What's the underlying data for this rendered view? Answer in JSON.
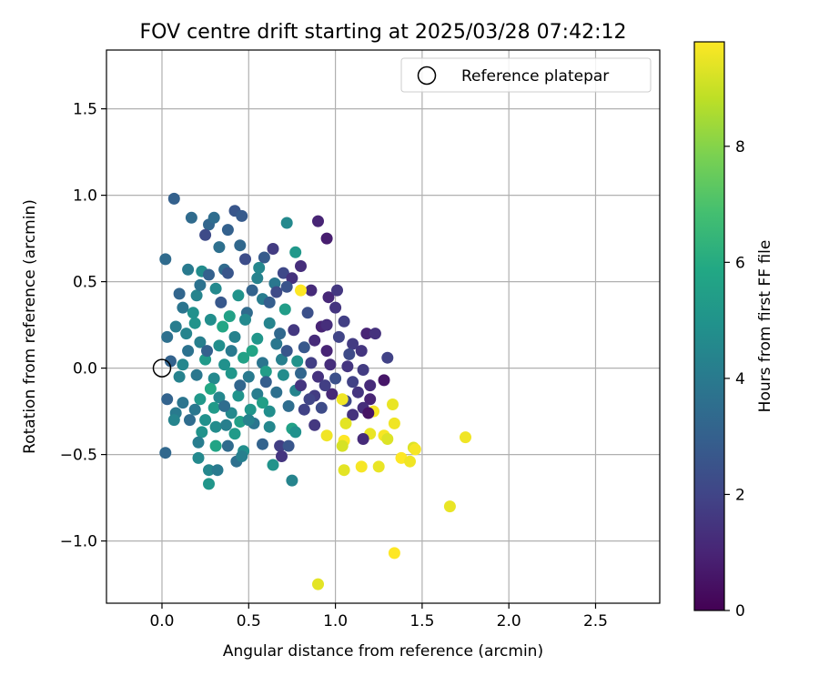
{
  "chart_data": {
    "type": "scatter",
    "title": "FOV centre drift starting at 2025/03/28 07:42:12",
    "xlabel": "Angular distance from reference (arcmin)",
    "ylabel": "Rotation from reference (arcmin)",
    "xlim": [
      -0.32,
      2.87
    ],
    "ylim": [
      -1.36,
      1.84
    ],
    "xticks": [
      0.0,
      0.5,
      1.0,
      1.5,
      2.0,
      2.5
    ],
    "xtick_labels": [
      "0.0",
      "0.5",
      "1.0",
      "1.5",
      "2.0",
      "2.5"
    ],
    "yticks": [
      -1.0,
      -0.5,
      0.0,
      0.5,
      1.0,
      1.5
    ],
    "ytick_labels": [
      "−1.0",
      "−0.5",
      "0.0",
      "0.5",
      "1.0",
      "1.5"
    ],
    "grid": true,
    "legend": {
      "position": "upper right",
      "entries": [
        "Reference platepar"
      ]
    },
    "reference_point": {
      "x": 0.0,
      "y": 0.0
    },
    "colorbar": {
      "label": "Hours from first FF file",
      "colormap": "viridis",
      "range": [
        0,
        9.8
      ],
      "ticks": [
        0,
        2,
        4,
        6,
        8
      ],
      "tick_labels": [
        "0",
        "2",
        "4",
        "6",
        "8"
      ]
    },
    "points": [
      {
        "x": 0.07,
        "y": 0.98,
        "t": 3.0
      },
      {
        "x": 0.17,
        "y": 0.87,
        "t": 3.4
      },
      {
        "x": 0.27,
        "y": 0.83,
        "t": 3.2
      },
      {
        "x": 0.3,
        "y": 0.87,
        "t": 3.5
      },
      {
        "x": 0.42,
        "y": 0.91,
        "t": 2.6
      },
      {
        "x": 0.46,
        "y": 0.88,
        "t": 2.8
      },
      {
        "x": 0.25,
        "y": 0.77,
        "t": 2.2
      },
      {
        "x": 0.38,
        "y": 0.8,
        "t": 3.0
      },
      {
        "x": 0.72,
        "y": 0.84,
        "t": 4.6
      },
      {
        "x": 0.9,
        "y": 0.85,
        "t": 1.0
      },
      {
        "x": 0.95,
        "y": 0.75,
        "t": 0.8
      },
      {
        "x": 0.02,
        "y": 0.63,
        "t": 3.4
      },
      {
        "x": 0.64,
        "y": 0.69,
        "t": 1.7
      },
      {
        "x": 0.77,
        "y": 0.67,
        "t": 5.2
      },
      {
        "x": 0.33,
        "y": 0.7,
        "t": 3.6
      },
      {
        "x": 0.45,
        "y": 0.71,
        "t": 3.3
      },
      {
        "x": 0.59,
        "y": 0.64,
        "t": 2.8
      },
      {
        "x": 0.48,
        "y": 0.63,
        "t": 2.3
      },
      {
        "x": 0.8,
        "y": 0.59,
        "t": 1.3
      },
      {
        "x": 0.15,
        "y": 0.57,
        "t": 4.0
      },
      {
        "x": 0.23,
        "y": 0.56,
        "t": 4.7
      },
      {
        "x": 0.55,
        "y": 0.52,
        "t": 4.3
      },
      {
        "x": 0.7,
        "y": 0.55,
        "t": 2.1
      },
      {
        "x": 0.36,
        "y": 0.57,
        "t": 3.4
      },
      {
        "x": 0.27,
        "y": 0.54,
        "t": 3.0
      },
      {
        "x": 0.65,
        "y": 0.49,
        "t": 3.9
      },
      {
        "x": 0.75,
        "y": 0.52,
        "t": 1.4
      },
      {
        "x": 0.72,
        "y": 0.47,
        "t": 2.5
      },
      {
        "x": 0.86,
        "y": 0.45,
        "t": 1.2
      },
      {
        "x": 0.8,
        "y": 0.45,
        "t": 9.8
      },
      {
        "x": 0.1,
        "y": 0.43,
        "t": 3.2
      },
      {
        "x": 0.12,
        "y": 0.35,
        "t": 3.8
      },
      {
        "x": 0.2,
        "y": 0.42,
        "t": 4.4
      },
      {
        "x": 0.31,
        "y": 0.46,
        "t": 4.6
      },
      {
        "x": 0.44,
        "y": 0.42,
        "t": 5.0
      },
      {
        "x": 0.58,
        "y": 0.4,
        "t": 4.1
      },
      {
        "x": 0.96,
        "y": 0.41,
        "t": 1.1
      },
      {
        "x": 1.0,
        "y": 0.35,
        "t": 1.5
      },
      {
        "x": 1.01,
        "y": 0.45,
        "t": 1.6
      },
      {
        "x": 0.71,
        "y": 0.34,
        "t": 5.4
      },
      {
        "x": 0.84,
        "y": 0.32,
        "t": 2.4
      },
      {
        "x": 0.92,
        "y": 0.24,
        "t": 1.0
      },
      {
        "x": 0.95,
        "y": 0.25,
        "t": 1.3
      },
      {
        "x": 1.05,
        "y": 0.27,
        "t": 1.8
      },
      {
        "x": 1.02,
        "y": 0.18,
        "t": 2.0
      },
      {
        "x": 1.18,
        "y": 0.2,
        "t": 1.0
      },
      {
        "x": 1.23,
        "y": 0.2,
        "t": 1.4
      },
      {
        "x": 0.08,
        "y": 0.24,
        "t": 4.1
      },
      {
        "x": 0.03,
        "y": 0.18,
        "t": 3.6
      },
      {
        "x": 0.19,
        "y": 0.26,
        "t": 5.0
      },
      {
        "x": 0.28,
        "y": 0.28,
        "t": 4.8
      },
      {
        "x": 0.39,
        "y": 0.3,
        "t": 5.6
      },
      {
        "x": 0.49,
        "y": 0.32,
        "t": 3.4
      },
      {
        "x": 0.62,
        "y": 0.26,
        "t": 4.4
      },
      {
        "x": 0.76,
        "y": 0.22,
        "t": 1.6
      },
      {
        "x": 0.88,
        "y": 0.16,
        "t": 1.2
      },
      {
        "x": 1.1,
        "y": 0.14,
        "t": 1.7
      },
      {
        "x": 1.15,
        "y": 0.1,
        "t": 1.5
      },
      {
        "x": 1.3,
        "y": 0.06,
        "t": 1.9
      },
      {
        "x": 1.08,
        "y": 0.08,
        "t": 2.2
      },
      {
        "x": 0.95,
        "y": 0.1,
        "t": 1.0
      },
      {
        "x": 0.82,
        "y": 0.12,
        "t": 2.7
      },
      {
        "x": 0.66,
        "y": 0.14,
        "t": 3.9
      },
      {
        "x": 0.55,
        "y": 0.17,
        "t": 5.1
      },
      {
        "x": 0.42,
        "y": 0.18,
        "t": 4.3
      },
      {
        "x": 0.33,
        "y": 0.13,
        "t": 4.8
      },
      {
        "x": 0.22,
        "y": 0.15,
        "t": 4.2
      },
      {
        "x": 0.15,
        "y": 0.1,
        "t": 3.7
      },
      {
        "x": 0.05,
        "y": 0.04,
        "t": 3.1
      },
      {
        "x": 0.12,
        "y": 0.02,
        "t": 4.5
      },
      {
        "x": 0.25,
        "y": 0.05,
        "t": 5.3
      },
      {
        "x": 0.36,
        "y": 0.02,
        "t": 4.9
      },
      {
        "x": 0.47,
        "y": 0.06,
        "t": 5.6
      },
      {
        "x": 0.58,
        "y": 0.03,
        "t": 3.8
      },
      {
        "x": 0.69,
        "y": 0.05,
        "t": 4.2
      },
      {
        "x": 0.78,
        "y": 0.04,
        "t": 5.0
      },
      {
        "x": 0.86,
        "y": 0.03,
        "t": 1.8
      },
      {
        "x": 0.97,
        "y": 0.02,
        "t": 1.3
      },
      {
        "x": 1.07,
        "y": 0.01,
        "t": 1.5
      },
      {
        "x": 1.16,
        "y": -0.01,
        "t": 1.7
      },
      {
        "x": 1.28,
        "y": -0.07,
        "t": 0.6
      },
      {
        "x": 1.2,
        "y": -0.1,
        "t": 1.2
      },
      {
        "x": 1.1,
        "y": -0.08,
        "t": 1.9
      },
      {
        "x": 1.0,
        "y": -0.06,
        "t": 2.4
      },
      {
        "x": 0.9,
        "y": -0.05,
        "t": 1.4
      },
      {
        "x": 0.8,
        "y": -0.03,
        "t": 3.2
      },
      {
        "x": 0.7,
        "y": -0.04,
        "t": 4.7
      },
      {
        "x": 0.6,
        "y": -0.02,
        "t": 5.4
      },
      {
        "x": 0.5,
        "y": -0.05,
        "t": 4.0
      },
      {
        "x": 0.4,
        "y": -0.03,
        "t": 5.1
      },
      {
        "x": 0.3,
        "y": -0.06,
        "t": 4.6
      },
      {
        "x": 0.2,
        "y": -0.04,
        "t": 3.9
      },
      {
        "x": 0.1,
        "y": -0.05,
        "t": 4.3
      },
      {
        "x": 0.03,
        "y": -0.18,
        "t": 3.1
      },
      {
        "x": 0.12,
        "y": -0.2,
        "t": 3.8
      },
      {
        "x": 0.22,
        "y": -0.18,
        "t": 5.2
      },
      {
        "x": 0.33,
        "y": -0.17,
        "t": 4.5
      },
      {
        "x": 0.44,
        "y": -0.16,
        "t": 5.0
      },
      {
        "x": 0.55,
        "y": -0.15,
        "t": 4.1
      },
      {
        "x": 0.66,
        "y": -0.14,
        "t": 3.6
      },
      {
        "x": 0.77,
        "y": -0.13,
        "t": 4.4
      },
      {
        "x": 0.88,
        "y": -0.16,
        "t": 1.7
      },
      {
        "x": 0.98,
        "y": -0.15,
        "t": 1.1
      },
      {
        "x": 1.06,
        "y": -0.19,
        "t": 2.1
      },
      {
        "x": 1.13,
        "y": -0.14,
        "t": 1.5
      },
      {
        "x": 1.2,
        "y": -0.18,
        "t": 1.0
      },
      {
        "x": 1.16,
        "y": -0.23,
        "t": 1.3
      },
      {
        "x": 1.04,
        "y": -0.18,
        "t": 9.6
      },
      {
        "x": 1.22,
        "y": -0.25,
        "t": 9.7
      },
      {
        "x": 1.33,
        "y": -0.21,
        "t": 9.5
      },
      {
        "x": 1.19,
        "y": -0.26,
        "t": 0.5
      },
      {
        "x": 1.1,
        "y": -0.27,
        "t": 1.4
      },
      {
        "x": 0.92,
        "y": -0.23,
        "t": 2.2
      },
      {
        "x": 0.82,
        "y": -0.24,
        "t": 1.9
      },
      {
        "x": 0.73,
        "y": -0.22,
        "t": 3.5
      },
      {
        "x": 0.62,
        "y": -0.25,
        "t": 4.8
      },
      {
        "x": 0.51,
        "y": -0.24,
        "t": 5.1
      },
      {
        "x": 0.4,
        "y": -0.26,
        "t": 4.6
      },
      {
        "x": 0.3,
        "y": -0.23,
        "t": 5.3
      },
      {
        "x": 0.19,
        "y": -0.24,
        "t": 3.9
      },
      {
        "x": 0.08,
        "y": -0.26,
        "t": 4.0
      },
      {
        "x": 0.07,
        "y": -0.3,
        "t": 4.4
      },
      {
        "x": 0.16,
        "y": -0.3,
        "t": 3.5
      },
      {
        "x": 0.23,
        "y": -0.37,
        "t": 5.0
      },
      {
        "x": 0.31,
        "y": -0.34,
        "t": 4.7
      },
      {
        "x": 0.37,
        "y": -0.33,
        "t": 4.2
      },
      {
        "x": 0.45,
        "y": -0.31,
        "t": 5.5
      },
      {
        "x": 0.53,
        "y": -0.32,
        "t": 3.8
      },
      {
        "x": 0.62,
        "y": -0.34,
        "t": 4.5
      },
      {
        "x": 0.75,
        "y": -0.35,
        "t": 5.6
      },
      {
        "x": 0.77,
        "y": -0.37,
        "t": 4.9
      },
      {
        "x": 0.88,
        "y": -0.33,
        "t": 1.6
      },
      {
        "x": 1.06,
        "y": -0.32,
        "t": 9.4
      },
      {
        "x": 0.95,
        "y": -0.39,
        "t": 9.6
      },
      {
        "x": 1.05,
        "y": -0.42,
        "t": 9.8
      },
      {
        "x": 1.2,
        "y": -0.38,
        "t": 9.5
      },
      {
        "x": 1.28,
        "y": -0.39,
        "t": 9.7
      },
      {
        "x": 1.3,
        "y": -0.41,
        "t": 9.3
      },
      {
        "x": 1.34,
        "y": -0.32,
        "t": 9.6
      },
      {
        "x": 1.16,
        "y": -0.41,
        "t": 1.2
      },
      {
        "x": 1.04,
        "y": -0.45,
        "t": 9.2
      },
      {
        "x": 0.68,
        "y": -0.45,
        "t": 1.8
      },
      {
        "x": 0.58,
        "y": -0.44,
        "t": 3.1
      },
      {
        "x": 0.47,
        "y": -0.48,
        "t": 4.8
      },
      {
        "x": 0.38,
        "y": -0.45,
        "t": 3.4
      },
      {
        "x": 0.31,
        "y": -0.45,
        "t": 5.7
      },
      {
        "x": 0.21,
        "y": -0.43,
        "t": 4.1
      },
      {
        "x": 0.21,
        "y": -0.52,
        "t": 4.6
      },
      {
        "x": 0.02,
        "y": -0.49,
        "t": 3.3
      },
      {
        "x": 0.27,
        "y": -0.59,
        "t": 4.5
      },
      {
        "x": 0.32,
        "y": -0.59,
        "t": 4.0
      },
      {
        "x": 0.27,
        "y": -0.67,
        "t": 5.1
      },
      {
        "x": 0.43,
        "y": -0.54,
        "t": 3.6
      },
      {
        "x": 0.46,
        "y": -0.51,
        "t": 4.2
      },
      {
        "x": 0.64,
        "y": -0.56,
        "t": 5.0
      },
      {
        "x": 0.69,
        "y": -0.51,
        "t": 1.5
      },
      {
        "x": 0.75,
        "y": -0.65,
        "t": 4.4
      },
      {
        "x": 0.73,
        "y": -0.45,
        "t": 2.6
      },
      {
        "x": 1.05,
        "y": -0.59,
        "t": 9.4
      },
      {
        "x": 1.15,
        "y": -0.57,
        "t": 9.7
      },
      {
        "x": 1.25,
        "y": -0.57,
        "t": 9.5
      },
      {
        "x": 1.38,
        "y": -0.52,
        "t": 9.8
      },
      {
        "x": 1.43,
        "y": -0.54,
        "t": 9.6
      },
      {
        "x": 1.45,
        "y": -0.46,
        "t": 9.3
      },
      {
        "x": 1.46,
        "y": -0.47,
        "t": 9.7
      },
      {
        "x": 1.75,
        "y": -0.4,
        "t": 9.6
      },
      {
        "x": 1.66,
        "y": -0.8,
        "t": 9.5
      },
      {
        "x": 1.34,
        "y": -1.07,
        "t": 9.8
      },
      {
        "x": 0.9,
        "y": -1.25,
        "t": 9.4
      },
      {
        "x": 0.26,
        "y": 0.1,
        "t": 3.0
      },
      {
        "x": 0.34,
        "y": 0.38,
        "t": 2.7
      },
      {
        "x": 0.52,
        "y": 0.45,
        "t": 3.1
      },
      {
        "x": 0.62,
        "y": 0.38,
        "t": 2.9
      },
      {
        "x": 0.68,
        "y": 0.2,
        "t": 3.3
      },
      {
        "x": 0.72,
        "y": 0.1,
        "t": 2.6
      },
      {
        "x": 0.6,
        "y": -0.08,
        "t": 2.9
      },
      {
        "x": 0.45,
        "y": -0.1,
        "t": 3.2
      },
      {
        "x": 0.35,
        "y": 0.24,
        "t": 5.8
      },
      {
        "x": 0.28,
        "y": -0.12,
        "t": 5.9
      },
      {
        "x": 0.52,
        "y": 0.1,
        "t": 5.7
      },
      {
        "x": 0.4,
        "y": 0.1,
        "t": 4.0
      },
      {
        "x": 0.5,
        "y": -0.3,
        "t": 4.3
      },
      {
        "x": 0.18,
        "y": 0.32,
        "t": 4.9
      },
      {
        "x": 0.56,
        "y": 0.58,
        "t": 4.5
      },
      {
        "x": 0.48,
        "y": 0.28,
        "t": 4.6
      },
      {
        "x": 0.85,
        "y": -0.18,
        "t": 2.0
      },
      {
        "x": 0.94,
        "y": -0.1,
        "t": 1.8
      },
      {
        "x": 0.8,
        "y": -0.1,
        "t": 1.5
      },
      {
        "x": 0.66,
        "y": 0.44,
        "t": 2.2
      },
      {
        "x": 0.38,
        "y": 0.55,
        "t": 2.6
      },
      {
        "x": 0.22,
        "y": 0.48,
        "t": 3.7
      },
      {
        "x": 0.14,
        "y": 0.2,
        "t": 4.4
      },
      {
        "x": 0.25,
        "y": -0.3,
        "t": 4.9
      },
      {
        "x": 0.42,
        "y": -0.38,
        "t": 5.3
      },
      {
        "x": 0.58,
        "y": -0.2,
        "t": 5.5
      },
      {
        "x": 0.36,
        "y": -0.22,
        "t": 3.5
      }
    ]
  }
}
